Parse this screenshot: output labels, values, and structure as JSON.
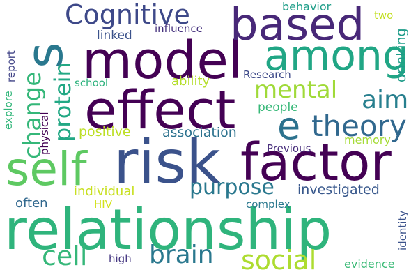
{
  "words": [
    {
      "id": "relationship",
      "text": "relationship",
      "color": "#2fb47c"
    },
    {
      "id": "risk",
      "text": "risk",
      "color": "#3b528b"
    },
    {
      "id": "factor",
      "text": "factor",
      "color": "#440154"
    },
    {
      "id": "effect",
      "text": "effect",
      "color": "#440154"
    },
    {
      "id": "model",
      "text": "model",
      "color": "#440154"
    },
    {
      "id": "among",
      "text": "among",
      "color": "#21a685"
    },
    {
      "id": "based",
      "text": "based",
      "color": "#482878"
    },
    {
      "id": "self",
      "text": "self",
      "color": "#5ec962"
    },
    {
      "id": "s",
      "text": "s",
      "color": "#2a788e"
    },
    {
      "id": "e",
      "text": "e",
      "color": "#2c728e"
    },
    {
      "id": "theory",
      "text": "theory",
      "color": "#31688e"
    },
    {
      "id": "cognitive",
      "text": "Cognitive",
      "color": "#3e4989"
    },
    {
      "id": "mental",
      "text": "mental",
      "color": "#a0da39"
    },
    {
      "id": "aim",
      "text": "aim",
      "color": "#277f8e"
    },
    {
      "id": "social",
      "text": "social",
      "color": "#addc30"
    },
    {
      "id": "brain",
      "text": "brain",
      "color": "#2a788e"
    },
    {
      "id": "cell",
      "text": "cell",
      "color": "#35b779"
    },
    {
      "id": "purpose",
      "text": "purpose",
      "color": "#2a788e"
    },
    {
      "id": "change",
      "text": "change",
      "color": "#35b779"
    },
    {
      "id": "protein",
      "text": "protein",
      "color": "#22a884"
    },
    {
      "id": "association",
      "text": "association",
      "color": "#2c728e"
    },
    {
      "id": "positive",
      "text": "positive",
      "color": "#bddf26"
    },
    {
      "id": "investigated",
      "text": "investigated",
      "color": "#38588c"
    },
    {
      "id": "people",
      "text": "people",
      "color": "#37b878"
    },
    {
      "id": "ability",
      "text": "ability",
      "color": "#b5de2b"
    },
    {
      "id": "individual",
      "text": "individual",
      "color": "#c8e020"
    },
    {
      "id": "often",
      "text": "often",
      "color": "#31688e"
    },
    {
      "id": "memory",
      "text": "memory",
      "color": "#a5db36"
    },
    {
      "id": "evidence",
      "text": "evidence",
      "color": "#3aba76"
    },
    {
      "id": "behavior",
      "text": "behavior",
      "color": "#1f9e89"
    },
    {
      "id": "linked",
      "text": "linked",
      "color": "#3b528b"
    },
    {
      "id": "influence",
      "text": "influence",
      "color": "#46327e"
    },
    {
      "id": "two",
      "text": "two",
      "color": "#c2df23"
    },
    {
      "id": "research",
      "text": "Research",
      "color": "#3e4a89"
    },
    {
      "id": "school",
      "text": "school",
      "color": "#2db27d"
    },
    {
      "id": "previous",
      "text": "Previous",
      "color": "#472d7b"
    },
    {
      "id": "complex",
      "text": "complex",
      "color": "#2a788e"
    },
    {
      "id": "hiv",
      "text": "HIV",
      "color": "#d2e21b"
    },
    {
      "id": "high",
      "text": "high",
      "color": "#453781"
    },
    {
      "id": "report",
      "text": "report",
      "color": "#414487"
    },
    {
      "id": "explore",
      "text": "explore",
      "color": "#32b67a"
    },
    {
      "id": "physical",
      "text": "physical",
      "color": "#440154"
    },
    {
      "id": "drinking",
      "text": "drinking",
      "color": "#1e9c89"
    },
    {
      "id": "identity",
      "text": "identity",
      "color": "#3b528b"
    }
  ]
}
